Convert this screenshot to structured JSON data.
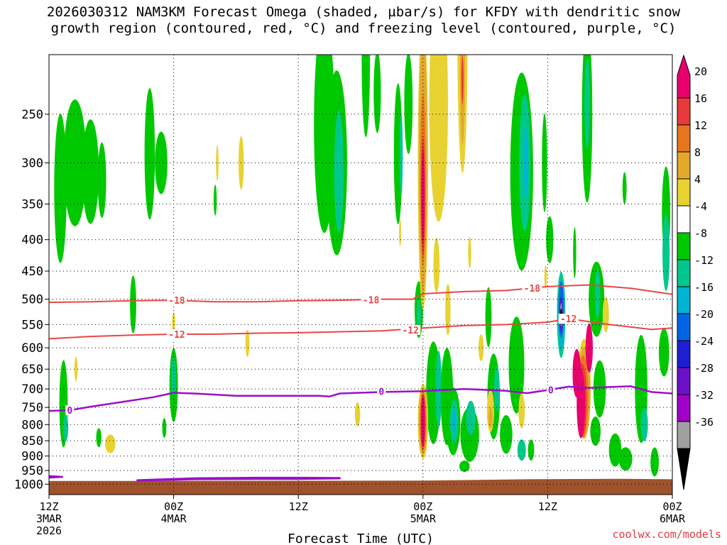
{
  "title": {
    "line1": "2026030312 NAM3KM Forecast Omega (shaded, µbar/s) for KFDY with dendritic snow",
    "line2": "growth region (contoured, red, °C) and freezing level (contoured, purple, °C)"
  },
  "credit": "coolwx.com/models",
  "chart_data": {
    "type": "heatmap",
    "xlabel": "Forecast Time (UTC)",
    "x_ticks": [
      {
        "hour": 0,
        "lines": [
          "12Z",
          "3MAR",
          "2026"
        ]
      },
      {
        "hour": 12,
        "lines": [
          "00Z",
          "4MAR"
        ]
      },
      {
        "hour": 24,
        "lines": [
          "12Z"
        ]
      },
      {
        "hour": 36,
        "lines": [
          "00Z",
          "5MAR"
        ]
      },
      {
        "hour": 48,
        "lines": [
          "12Z"
        ]
      },
      {
        "hour": 60,
        "lines": [
          "00Z",
          "6MAR"
        ]
      }
    ],
    "xlim_hours": [
      0,
      60
    ],
    "y_ticks": [
      250,
      300,
      350,
      400,
      450,
      500,
      550,
      600,
      650,
      700,
      750,
      800,
      850,
      900,
      950,
      1000
    ],
    "ylim_hPa": [
      200,
      1040
    ],
    "ground_hPa": [
      [
        0,
        988
      ],
      [
        10,
        988
      ],
      [
        36,
        987
      ],
      [
        46,
        982
      ],
      [
        55,
        980
      ],
      [
        60,
        982
      ]
    ],
    "colorbar": {
      "labels": [
        "20",
        "16",
        "12",
        "8",
        "4",
        "-4",
        "-8",
        "-12",
        "-16",
        "-20",
        "-24",
        "-28",
        "-32",
        "-36"
      ],
      "colors": [
        "#e8006e",
        "#e83a3a",
        "#e8761e",
        "#e4a82c",
        "#e8d232",
        "#ffffff",
        "#00c800",
        "#00c88c",
        "#00b4d2",
        "#0064e6",
        "#1e1ed2",
        "#6e10c8",
        "#a000c8",
        "#a0a0a0",
        "#000000"
      ]
    },
    "isotherms_red": {
      "color": "#e84646",
      "labels": [
        "-18",
        "-18",
        "-18",
        "-12",
        "-12",
        "-12"
      ],
      "m18_points": [
        [
          0,
          506
        ],
        [
          4,
          505
        ],
        [
          8,
          503
        ],
        [
          12,
          502
        ],
        [
          16,
          505
        ],
        [
          20,
          505
        ],
        [
          24,
          503
        ],
        [
          28,
          502
        ],
        [
          32,
          500
        ],
        [
          35,
          500
        ],
        [
          36,
          490
        ],
        [
          40,
          486
        ],
        [
          44,
          484
        ],
        [
          48,
          477
        ],
        [
          52,
          474
        ],
        [
          56,
          480
        ],
        [
          60,
          491
        ]
      ],
      "m12_points": [
        [
          0,
          580
        ],
        [
          4,
          575
        ],
        [
          8,
          572
        ],
        [
          12,
          570
        ],
        [
          16,
          570
        ],
        [
          20,
          568
        ],
        [
          24,
          567
        ],
        [
          28,
          565
        ],
        [
          32,
          563
        ],
        [
          36,
          557
        ],
        [
          40,
          552
        ],
        [
          44,
          550
        ],
        [
          48,
          545
        ],
        [
          50,
          538
        ],
        [
          54,
          550
        ],
        [
          58,
          560
        ],
        [
          60,
          557
        ]
      ],
      "m18_label_at": [
        [
          12.3,
          502
        ],
        [
          31.0,
          501
        ],
        [
          46.5,
          480
        ]
      ],
      "m12_label_at": [
        [
          12.3,
          570
        ],
        [
          34.8,
          561
        ],
        [
          50.0,
          538
        ]
      ]
    },
    "freezing_level": {
      "color": "#9a10c8",
      "label": "0",
      "points": [
        [
          0,
          760
        ],
        [
          2,
          758
        ],
        [
          4,
          748
        ],
        [
          7,
          735
        ],
        [
          10,
          722
        ],
        [
          12,
          710
        ],
        [
          14,
          712
        ],
        [
          18,
          718
        ],
        [
          22,
          718
        ],
        [
          26,
          718
        ],
        [
          27,
          720
        ],
        [
          28,
          712
        ],
        [
          32,
          708
        ],
        [
          36,
          706
        ],
        [
          40,
          700
        ],
        [
          44,
          705
        ],
        [
          46,
          711
        ],
        [
          48,
          703
        ],
        [
          50,
          694
        ],
        [
          52,
          697
        ],
        [
          54,
          695
        ],
        [
          56,
          693
        ],
        [
          58,
          708
        ],
        [
          60,
          712
        ]
      ],
      "label_at": [
        [
          2.0,
          758
        ],
        [
          32.0,
          706
        ],
        [
          48.3,
          703
        ]
      ],
      "surface_loop": [
        [
          8.5,
          985
        ],
        [
          14,
          978
        ],
        [
          20,
          976
        ],
        [
          24,
          976
        ],
        [
          28,
          977
        ],
        [
          28,
          979
        ],
        [
          24,
          981
        ],
        [
          20,
          981
        ],
        [
          14,
          982
        ],
        [
          8.5,
          987
        ]
      ],
      "left_loop": [
        [
          0,
          970
        ],
        [
          1.3,
          973
        ],
        [
          0,
          976
        ]
      ]
    },
    "omega_blobs": [
      {
        "x": 1.1,
        "p": 330,
        "w": 1.2,
        "h": 180,
        "lvl": "-8"
      },
      {
        "x": 2.5,
        "p": 300,
        "w": 2.2,
        "h": 140,
        "lvl": "-8"
      },
      {
        "x": 4.0,
        "p": 310,
        "w": 1.6,
        "h": 120,
        "lvl": "-8"
      },
      {
        "x": 5.1,
        "p": 320,
        "w": 0.8,
        "h": 90,
        "lvl": "-8"
      },
      {
        "x": 9.7,
        "p": 290,
        "w": 1.0,
        "h": 140,
        "lvl": "-8"
      },
      {
        "x": 10.8,
        "p": 300,
        "w": 1.2,
        "h": 70,
        "lvl": "-8"
      },
      {
        "x": 8.1,
        "p": 510,
        "w": 0.6,
        "h": 110,
        "lvl": "-8"
      },
      {
        "x": 12.0,
        "p": 690,
        "w": 0.8,
        "h": 190,
        "lvl": "-8"
      },
      {
        "x": 12.0,
        "p": 670,
        "w": 0.4,
        "h": 100,
        "lvl": "-12"
      },
      {
        "x": 1.4,
        "p": 740,
        "w": 0.8,
        "h": 240,
        "lvl": "-8"
      },
      {
        "x": 1.6,
        "p": 810,
        "w": 0.5,
        "h": 80,
        "lvl": "-12"
      },
      {
        "x": 11.1,
        "p": 810,
        "w": 0.4,
        "h": 60,
        "lvl": "-8"
      },
      {
        "x": 4.8,
        "p": 840,
        "w": 0.5,
        "h": 60,
        "lvl": "-8"
      },
      {
        "x": 16.0,
        "p": 345,
        "w": 0.3,
        "h": 40,
        "lvl": "-8"
      },
      {
        "x": 26.5,
        "p": 260,
        "w": 2.0,
        "h": 200,
        "lvl": "-8"
      },
      {
        "x": 27.7,
        "p": 300,
        "w": 2.0,
        "h": 200,
        "lvl": "-8"
      },
      {
        "x": 27.9,
        "p": 310,
        "w": 0.9,
        "h": 140,
        "lvl": "-12"
      },
      {
        "x": 30.5,
        "p": 200,
        "w": 0.8,
        "h": 120,
        "lvl": "-8"
      },
      {
        "x": 31.6,
        "p": 230,
        "w": 0.7,
        "h": 70,
        "lvl": "-8"
      },
      {
        "x": 33.6,
        "p": 290,
        "w": 0.8,
        "h": 150,
        "lvl": "-8"
      },
      {
        "x": 33.9,
        "p": 290,
        "w": 0.3,
        "h": 90,
        "lvl": "-12"
      },
      {
        "x": 34.6,
        "p": 240,
        "w": 0.8,
        "h": 90,
        "lvl": "-8"
      },
      {
        "x": 35.6,
        "p": 520,
        "w": 0.8,
        "h": 110,
        "lvl": "-8"
      },
      {
        "x": 35.6,
        "p": 530,
        "w": 0.4,
        "h": 60,
        "lvl": "-12"
      },
      {
        "x": 37.0,
        "p": 710,
        "w": 1.4,
        "h": 270,
        "lvl": "-8"
      },
      {
        "x": 37.5,
        "p": 700,
        "w": 0.6,
        "h": 200,
        "lvl": "-12"
      },
      {
        "x": 38.3,
        "p": 720,
        "w": 1.2,
        "h": 260,
        "lvl": "-8"
      },
      {
        "x": 38.9,
        "p": 790,
        "w": 1.4,
        "h": 200,
        "lvl": "-8"
      },
      {
        "x": 39.0,
        "p": 790,
        "w": 0.8,
        "h": 130,
        "lvl": "-12"
      },
      {
        "x": 39.0,
        "p": 790,
        "w": 0.4,
        "h": 70,
        "lvl": "-16"
      },
      {
        "x": 40.5,
        "p": 830,
        "w": 1.8,
        "h": 170,
        "lvl": "-8"
      },
      {
        "x": 40.6,
        "p": 780,
        "w": 0.9,
        "h": 100,
        "lvl": "-12"
      },
      {
        "x": 40.0,
        "p": 935,
        "w": 1.0,
        "h": 40,
        "lvl": "-8"
      },
      {
        "x": 42.3,
        "p": 535,
        "w": 0.6,
        "h": 120,
        "lvl": "-8"
      },
      {
        "x": 42.8,
        "p": 720,
        "w": 1.2,
        "h": 230,
        "lvl": "-8"
      },
      {
        "x": 43.1,
        "p": 700,
        "w": 0.5,
        "h": 120,
        "lvl": "-12"
      },
      {
        "x": 44.0,
        "p": 830,
        "w": 1.2,
        "h": 120,
        "lvl": "-8"
      },
      {
        "x": 45.0,
        "p": 640,
        "w": 1.5,
        "h": 230,
        "lvl": "-8"
      },
      {
        "x": 45.5,
        "p": 880,
        "w": 0.8,
        "h": 70,
        "lvl": "-12"
      },
      {
        "x": 46.4,
        "p": 880,
        "w": 0.6,
        "h": 70,
        "lvl": "-8"
      },
      {
        "x": 45.5,
        "p": 310,
        "w": 2.2,
        "h": 220,
        "lvl": "-8"
      },
      {
        "x": 45.8,
        "p": 300,
        "w": 1.1,
        "h": 150,
        "lvl": "-12"
      },
      {
        "x": 45.9,
        "p": 300,
        "w": 0.4,
        "h": 80,
        "lvl": "-16"
      },
      {
        "x": 47.7,
        "p": 300,
        "w": 0.5,
        "h": 110,
        "lvl": "-8"
      },
      {
        "x": 48.2,
        "p": 400,
        "w": 0.7,
        "h": 70,
        "lvl": "-8"
      },
      {
        "x": 49.3,
        "p": 530,
        "w": 0.8,
        "h": 170,
        "lvl": "-12"
      },
      {
        "x": 49.3,
        "p": 530,
        "w": 0.6,
        "h": 140,
        "lvl": "-16"
      },
      {
        "x": 49.3,
        "p": 520,
        "w": 0.5,
        "h": 110,
        "lvl": "-20"
      },
      {
        "x": 49.3,
        "p": 530,
        "w": 0.3,
        "h": 70,
        "lvl": "-24"
      },
      {
        "x": 49.3,
        "p": 530,
        "w": 0.18,
        "h": 46,
        "lvl": "-32"
      },
      {
        "x": 49.3,
        "p": 530,
        "w": 0.07,
        "h": 25,
        "lvl": "-36"
      },
      {
        "x": 50.6,
        "p": 420,
        "w": 0.3,
        "h": 80,
        "lvl": "-8"
      },
      {
        "x": 51.8,
        "p": 250,
        "w": 1.0,
        "h": 160,
        "lvl": "-8"
      },
      {
        "x": 51.8,
        "p": 240,
        "w": 0.5,
        "h": 80,
        "lvl": "-12"
      },
      {
        "x": 52.7,
        "p": 500,
        "w": 1.5,
        "h": 140,
        "lvl": "-8"
      },
      {
        "x": 52.8,
        "p": 490,
        "w": 0.5,
        "h": 90,
        "lvl": "-12"
      },
      {
        "x": 53.0,
        "p": 700,
        "w": 1.2,
        "h": 150,
        "lvl": "-8"
      },
      {
        "x": 52.6,
        "p": 820,
        "w": 1.0,
        "h": 90,
        "lvl": "-8"
      },
      {
        "x": 54.5,
        "p": 880,
        "w": 1.2,
        "h": 110,
        "lvl": "-8"
      },
      {
        "x": 55.5,
        "p": 910,
        "w": 1.3,
        "h": 80,
        "lvl": "-8"
      },
      {
        "x": 55.4,
        "p": 330,
        "w": 0.4,
        "h": 40,
        "lvl": "-8"
      },
      {
        "x": 57.0,
        "p": 700,
        "w": 1.2,
        "h": 280,
        "lvl": "-8"
      },
      {
        "x": 57.3,
        "p": 800,
        "w": 0.7,
        "h": 100,
        "lvl": "-12"
      },
      {
        "x": 58.3,
        "p": 920,
        "w": 0.8,
        "h": 100,
        "lvl": "-8"
      },
      {
        "x": 59.4,
        "p": 360,
        "w": 0.8,
        "h": 120,
        "lvl": "-8"
      },
      {
        "x": 59.4,
        "p": 420,
        "w": 0.7,
        "h": 120,
        "lvl": "-12"
      },
      {
        "x": 59.2,
        "p": 610,
        "w": 1.0,
        "h": 110,
        "lvl": "-8"
      },
      {
        "x": 16.2,
        "p": 300,
        "w": 0.25,
        "h": 40,
        "lvl": "4"
      },
      {
        "x": 18.5,
        "p": 300,
        "w": 0.5,
        "h": 60,
        "lvl": "4"
      },
      {
        "x": 19.1,
        "p": 590,
        "w": 0.4,
        "h": 60,
        "lvl": "4"
      },
      {
        "x": 12.0,
        "p": 545,
        "w": 0.3,
        "h": 40,
        "lvl": "4"
      },
      {
        "x": 2.6,
        "p": 650,
        "w": 0.3,
        "h": 60,
        "lvl": "4"
      },
      {
        "x": 5.9,
        "p": 860,
        "w": 1.0,
        "h": 60,
        "lvl": "4"
      },
      {
        "x": 29.7,
        "p": 770,
        "w": 0.5,
        "h": 70,
        "lvl": "4"
      },
      {
        "x": 33.8,
        "p": 390,
        "w": 0.2,
        "h": 40,
        "lvl": "4"
      },
      {
        "x": 36.0,
        "p": 300,
        "w": 1.0,
        "h": 300,
        "lvl": "4"
      },
      {
        "x": 36.0,
        "p": 300,
        "w": 0.8,
        "h": 280,
        "lvl": "8"
      },
      {
        "x": 36.0,
        "p": 320,
        "w": 0.55,
        "h": 200,
        "lvl": "12"
      },
      {
        "x": 36.0,
        "p": 340,
        "w": 0.4,
        "h": 150,
        "lvl": "16"
      },
      {
        "x": 36.0,
        "p": 340,
        "w": 0.3,
        "h": 120,
        "lvl": "20"
      },
      {
        "x": 36.0,
        "p": 790,
        "w": 1.0,
        "h": 220,
        "lvl": "4"
      },
      {
        "x": 36.0,
        "p": 790,
        "w": 0.8,
        "h": 200,
        "lvl": "8"
      },
      {
        "x": 36.0,
        "p": 790,
        "w": 0.6,
        "h": 180,
        "lvl": "12"
      },
      {
        "x": 36.0,
        "p": 790,
        "w": 0.45,
        "h": 160,
        "lvl": "16"
      },
      {
        "x": 36.0,
        "p": 790,
        "w": 0.35,
        "h": 150,
        "lvl": "20"
      },
      {
        "x": 37.5,
        "p": 240,
        "w": 1.8,
        "h": 200,
        "lvl": "4"
      },
      {
        "x": 39.8,
        "p": 180,
        "w": 1.0,
        "h": 180,
        "lvl": "4"
      },
      {
        "x": 39.8,
        "p": 200,
        "w": 0.5,
        "h": 130,
        "lvl": "8"
      },
      {
        "x": 39.8,
        "p": 220,
        "w": 0.2,
        "h": 40,
        "lvl": "16"
      },
      {
        "x": 37.3,
        "p": 440,
        "w": 0.6,
        "h": 90,
        "lvl": "4"
      },
      {
        "x": 38.4,
        "p": 520,
        "w": 0.5,
        "h": 100,
        "lvl": "4"
      },
      {
        "x": 40.5,
        "p": 420,
        "w": 0.3,
        "h": 50,
        "lvl": "4"
      },
      {
        "x": 41.6,
        "p": 600,
        "w": 0.5,
        "h": 60,
        "lvl": "4"
      },
      {
        "x": 42.5,
        "p": 760,
        "w": 0.7,
        "h": 120,
        "lvl": "4"
      },
      {
        "x": 42.5,
        "p": 780,
        "w": 0.4,
        "h": 60,
        "lvl": "8"
      },
      {
        "x": 45.5,
        "p": 760,
        "w": 0.6,
        "h": 100,
        "lvl": "4"
      },
      {
        "x": 47.8,
        "p": 460,
        "w": 0.25,
        "h": 40,
        "lvl": "4"
      },
      {
        "x": 51.5,
        "p": 700,
        "w": 1.3,
        "h": 260,
        "lvl": "4"
      },
      {
        "x": 51.5,
        "p": 710,
        "w": 1.2,
        "h": 240,
        "lvl": "8"
      },
      {
        "x": 51.4,
        "p": 720,
        "w": 1.0,
        "h": 220,
        "lvl": "12"
      },
      {
        "x": 51.3,
        "p": 730,
        "w": 0.9,
        "h": 200,
        "lvl": "16"
      },
      {
        "x": 51.2,
        "p": 740,
        "w": 0.8,
        "h": 190,
        "lvl": "20"
      },
      {
        "x": 50.8,
        "p": 660,
        "w": 0.8,
        "h": 120,
        "lvl": "20"
      },
      {
        "x": 52.0,
        "p": 600,
        "w": 0.7,
        "h": 110,
        "lvl": "20"
      },
      {
        "x": 53.6,
        "p": 530,
        "w": 0.6,
        "h": 70,
        "lvl": "4"
      }
    ]
  }
}
